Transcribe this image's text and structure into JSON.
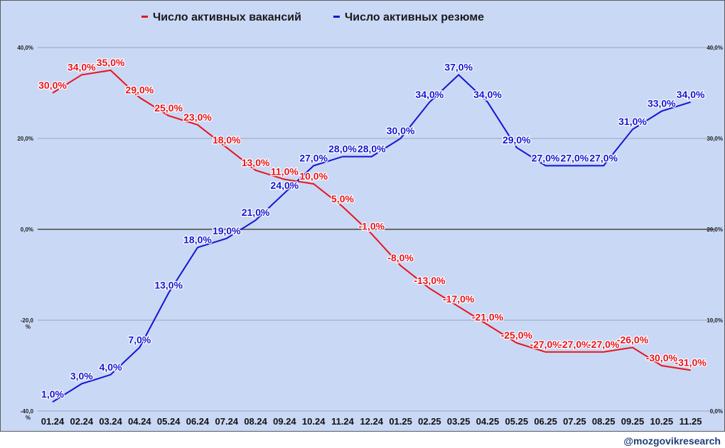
{
  "chart_data": {
    "type": "line",
    "categories": [
      "01.24",
      "02.24",
      "03.24",
      "04.24",
      "05.24",
      "06.24",
      "07.24",
      "08.24",
      "09.24",
      "10.24",
      "11.24",
      "12.24",
      "01.25",
      "02.25",
      "03.25",
      "04.25",
      "05.25",
      "06.25",
      "07.25",
      "08.25",
      "09.25",
      "10.25",
      "11.25"
    ],
    "left_axis": {
      "ylim": [
        -40,
        40
      ],
      "ticks": [
        40,
        20,
        0,
        -20,
        -40
      ],
      "tick_labels": [
        "40,0%",
        "20,0%",
        "0,0%",
        "-20,0\n%",
        "-40,0\n%"
      ]
    },
    "right_axis": {
      "ylim": [
        0,
        40
      ],
      "ticks": [
        40,
        30,
        20,
        10,
        0
      ],
      "tick_labels": [
        "40,0%",
        "30,0%",
        "20,0%",
        "10,0%",
        "0,0%"
      ]
    },
    "grid": true,
    "legend_position": "top",
    "series": [
      {
        "name": "Число активных вакансий",
        "color": "#e8141c",
        "axis": "left",
        "values": [
          30,
          34,
          35,
          29,
          25,
          23,
          18,
          13,
          11,
          10,
          5,
          -1,
          -8,
          -13,
          -17,
          -21,
          -25,
          -27,
          -27,
          -27,
          -26,
          -30,
          -31
        ],
        "labels": [
          "30,0%",
          "34,0%",
          "35,0%",
          "29,0%",
          "25,0%",
          "23,0%",
          "18,0%",
          "13,0%",
          "11,0%",
          "10,0%",
          "5,0%",
          "-1,0%",
          "-8,0%",
          "-13,0%",
          "-17,0%",
          "-21,0%",
          "-25,0%",
          "-27,0%",
          "-27,0%",
          "-27,0%",
          "-26,0%",
          "-30,0%",
          "-31,0%"
        ]
      },
      {
        "name": "Число активных резюме",
        "color": "#1414d2",
        "axis": "right",
        "values": [
          1,
          3,
          4,
          7,
          13,
          18,
          19,
          21,
          24,
          27,
          28,
          28,
          30,
          34,
          37,
          34,
          29,
          27,
          27,
          27,
          31,
          33,
          34
        ],
        "labels": [
          "1,0%",
          "3,0%",
          "4,0%",
          "7,0%",
          "13,0%",
          "18,0%",
          "19,0%",
          "21,0%",
          "24,0%",
          "27,0%",
          "28,0%",
          "28,0%",
          "30,0%",
          "34,0%",
          "37,0%",
          "34,0%",
          "29,0%",
          "27,0%",
          "27,0%",
          "27,0%",
          "31,0%",
          "33,0%",
          "34,0%"
        ]
      }
    ]
  },
  "watermark": "@mozgovikresearch"
}
